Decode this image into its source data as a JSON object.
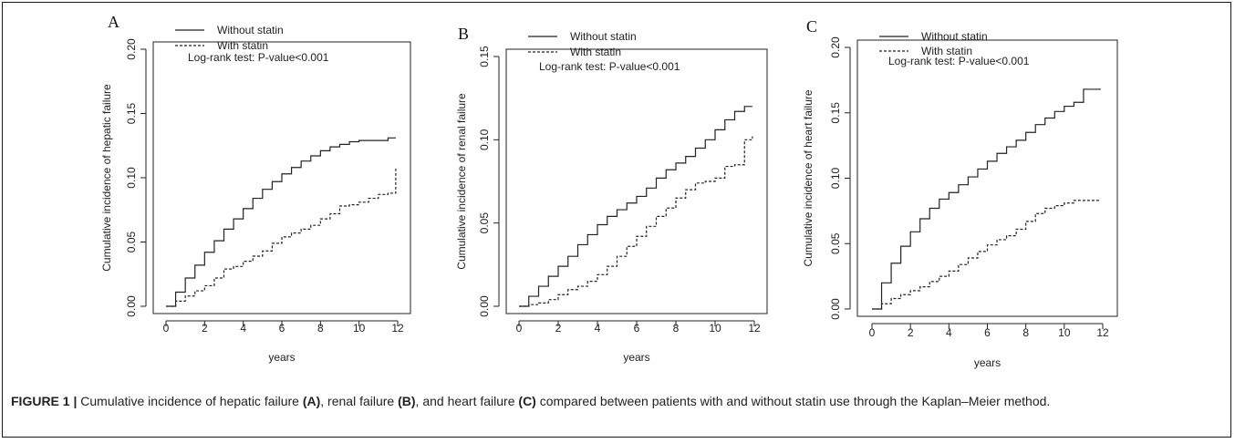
{
  "caption": {
    "label": "FIGURE 1 |",
    "text_1": " Cumulative incidence of hepatic failure ",
    "ref_a": "(A)",
    "text_2": ", renal failure ",
    "ref_b": "(B)",
    "text_3": ", and heart failure ",
    "ref_c": "(C)",
    "text_4": " compared between patients with and without statin use through the Kaplan–Meier method."
  },
  "chart_data": [
    {
      "type": "line",
      "panel_letter": "A",
      "xlabel": "years",
      "ylabel": "Cumulative incidence of hepatic failure",
      "xlim": [
        0,
        12
      ],
      "ylim": [
        0,
        0.2
      ],
      "xticks": [
        "0",
        "2",
        "4",
        "6",
        "8",
        "10",
        "12"
      ],
      "yticks": [
        "0.00",
        "0.05",
        "0.10",
        "0.15",
        "0.20"
      ],
      "legend": [
        "Without statin",
        "With statin"
      ],
      "legend_position": "top-left",
      "annotation": "Log-rank test: P-value<0.001",
      "grid": false,
      "series": [
        {
          "name": "Without statin",
          "style": "solid",
          "x": [
            0,
            0.5,
            1,
            1.5,
            2,
            2.5,
            3,
            3.5,
            4,
            4.5,
            5,
            5.5,
            6,
            6.5,
            7,
            7.5,
            8,
            8.5,
            9,
            9.5,
            10,
            10.5,
            11,
            11.5,
            11.9
          ],
          "y": [
            0,
            0.011,
            0.022,
            0.032,
            0.042,
            0.051,
            0.06,
            0.068,
            0.076,
            0.084,
            0.091,
            0.097,
            0.103,
            0.108,
            0.113,
            0.117,
            0.121,
            0.124,
            0.126,
            0.128,
            0.129,
            0.129,
            0.129,
            0.131,
            0.131
          ]
        },
        {
          "name": "With statin",
          "style": "dashed",
          "x": [
            0,
            0.5,
            1,
            1.5,
            2,
            2.5,
            3,
            3.5,
            4,
            4.5,
            5,
            5.5,
            6,
            6.5,
            7,
            7.5,
            8,
            8.5,
            9,
            9.5,
            10,
            10.5,
            11,
            11.5,
            11.9
          ],
          "y": [
            0,
            0.004,
            0.008,
            0.012,
            0.016,
            0.022,
            0.029,
            0.031,
            0.035,
            0.039,
            0.043,
            0.049,
            0.054,
            0.057,
            0.06,
            0.063,
            0.068,
            0.072,
            0.078,
            0.079,
            0.081,
            0.084,
            0.087,
            0.088,
            0.107
          ]
        }
      ]
    },
    {
      "type": "line",
      "panel_letter": "B",
      "xlabel": "years",
      "ylabel": "Cumulative incidence of renal failure",
      "xlim": [
        0,
        12
      ],
      "ylim": [
        0,
        0.15
      ],
      "xticks": [
        "0",
        "2",
        "4",
        "6",
        "8",
        "10",
        "12"
      ],
      "yticks": [
        "0.00",
        "0.05",
        "0.10",
        "0.15"
      ],
      "legend": [
        "Without statin",
        "With statin"
      ],
      "legend_position": "top-left",
      "annotation": "Log-rank test: P-value<0.001",
      "grid": false,
      "series": [
        {
          "name": "Without statin",
          "style": "solid",
          "x": [
            0,
            0.5,
            1,
            1.5,
            2,
            2.5,
            3,
            3.5,
            4,
            4.5,
            5,
            5.5,
            6,
            6.5,
            7,
            7.5,
            8,
            8.5,
            9,
            9.5,
            10,
            10.5,
            11,
            11.5,
            11.9
          ],
          "y": [
            0,
            0.006,
            0.012,
            0.018,
            0.024,
            0.03,
            0.037,
            0.043,
            0.049,
            0.054,
            0.058,
            0.062,
            0.066,
            0.071,
            0.077,
            0.082,
            0.086,
            0.09,
            0.095,
            0.1,
            0.106,
            0.112,
            0.117,
            0.12,
            0.12
          ]
        },
        {
          "name": "With statin",
          "style": "dashed",
          "x": [
            0,
            0.5,
            1,
            1.5,
            2,
            2.5,
            3,
            3.5,
            4,
            4.5,
            5,
            5.5,
            6,
            6.5,
            7,
            7.5,
            8,
            8.5,
            9,
            9.5,
            10,
            10.5,
            11,
            11.5,
            11.9
          ],
          "y": [
            0,
            0.001,
            0.002,
            0.004,
            0.007,
            0.01,
            0.012,
            0.015,
            0.019,
            0.024,
            0.03,
            0.036,
            0.042,
            0.048,
            0.054,
            0.059,
            0.065,
            0.07,
            0.074,
            0.075,
            0.077,
            0.084,
            0.085,
            0.1,
            0.102
          ]
        }
      ]
    },
    {
      "type": "line",
      "panel_letter": "C",
      "xlabel": "years",
      "ylabel": "Cumulative incidence of heart failure",
      "xlim": [
        0,
        12
      ],
      "ylim": [
        0,
        0.2
      ],
      "xticks": [
        "0",
        "2",
        "4",
        "6",
        "8",
        "10",
        "12"
      ],
      "yticks": [
        "0.00",
        "0.05",
        "0.10",
        "0.15",
        "0.20"
      ],
      "legend": [
        "Without statin",
        "With statin"
      ],
      "legend_position": "top-left",
      "annotation": "Log-rank test: P-value<0.001",
      "grid": false,
      "series": [
        {
          "name": "Without statin",
          "style": "solid",
          "x": [
            0,
            0.5,
            1,
            1.5,
            2,
            2.5,
            3,
            3.5,
            4,
            4.5,
            5,
            5.5,
            6,
            6.5,
            7,
            7.5,
            8,
            8.5,
            9,
            9.5,
            10,
            10.5,
            11,
            11.5,
            11.9
          ],
          "y": [
            0,
            0.02,
            0.035,
            0.048,
            0.059,
            0.069,
            0.077,
            0.084,
            0.089,
            0.095,
            0.101,
            0.107,
            0.113,
            0.119,
            0.124,
            0.129,
            0.135,
            0.141,
            0.146,
            0.151,
            0.155,
            0.158,
            0.168,
            0.168,
            0.168
          ]
        },
        {
          "name": "With statin",
          "style": "dashed",
          "x": [
            0,
            0.5,
            1,
            1.5,
            2,
            2.5,
            3,
            3.5,
            4,
            4.5,
            5,
            5.5,
            6,
            6.5,
            7,
            7.5,
            8,
            8.5,
            9,
            9.5,
            10,
            10.5,
            11,
            11.5,
            11.9
          ],
          "y": [
            0,
            0.004,
            0.008,
            0.011,
            0.014,
            0.017,
            0.021,
            0.025,
            0.029,
            0.034,
            0.039,
            0.044,
            0.049,
            0.053,
            0.056,
            0.061,
            0.067,
            0.073,
            0.077,
            0.079,
            0.081,
            0.083,
            0.083,
            0.083,
            0.083
          ]
        }
      ]
    }
  ]
}
